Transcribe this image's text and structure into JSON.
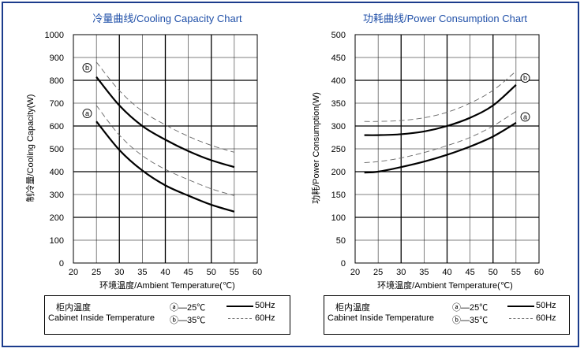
{
  "chart_data": [
    {
      "type": "line",
      "title": "冷量曲线/Cooling Capacity Chart",
      "xlabel": "环境温度/Ambient Temperature(℃)",
      "ylabel": "制冷量/Cooling Capacity(W)",
      "xlim": [
        20,
        60
      ],
      "ylim": [
        0,
        1000
      ],
      "x_ticks": [
        20,
        25,
        30,
        35,
        40,
        45,
        50,
        55,
        60
      ],
      "y_ticks": [
        0,
        100,
        200,
        300,
        400,
        500,
        600,
        700,
        800,
        900,
        1000
      ],
      "grid": true,
      "series": [
        {
          "marker": "b",
          "style": "solid",
          "x": [
            25,
            30,
            35,
            40,
            45,
            50,
            55
          ],
          "y": [
            815,
            690,
            600,
            540,
            490,
            450,
            420
          ]
        },
        {
          "marker": "b",
          "style": "dashed",
          "x": [
            25,
            30,
            35,
            40,
            45,
            50,
            55
          ],
          "y": [
            880,
            755,
            665,
            605,
            555,
            515,
            485
          ]
        },
        {
          "marker": "a",
          "style": "solid",
          "x": [
            25,
            30,
            35,
            40,
            45,
            50,
            55
          ],
          "y": [
            620,
            495,
            405,
            340,
            295,
            255,
            225
          ]
        },
        {
          "marker": "a",
          "style": "dashed",
          "x": [
            25,
            30,
            35,
            40,
            45,
            50,
            55
          ],
          "y": [
            690,
            560,
            470,
            410,
            365,
            325,
            295
          ]
        }
      ],
      "markers": [
        {
          "label": "b",
          "x": 23,
          "y": 855
        },
        {
          "label": "a",
          "x": 23,
          "y": 655
        }
      ]
    },
    {
      "type": "line",
      "title": "功耗曲线/Power Consumption Chart",
      "xlabel": "环境温度/Ambient Temperature(℃)",
      "ylabel": "功耗/Power Consumption(W)",
      "xlim": [
        20,
        60
      ],
      "ylim": [
        0,
        500
      ],
      "x_ticks": [
        20,
        25,
        30,
        35,
        40,
        45,
        50,
        55,
        60
      ],
      "y_ticks": [
        0,
        50,
        100,
        150,
        200,
        250,
        300,
        350,
        400,
        450,
        500
      ],
      "grid": true,
      "series": [
        {
          "marker": "b",
          "style": "solid",
          "x": [
            22,
            25,
            30,
            35,
            40,
            45,
            50,
            55
          ],
          "y": [
            280,
            280,
            282,
            288,
            300,
            318,
            345,
            390
          ]
        },
        {
          "marker": "b",
          "style": "dashed",
          "x": [
            22,
            25,
            30,
            35,
            40,
            45,
            50,
            55
          ],
          "y": [
            310,
            310,
            312,
            318,
            330,
            350,
            378,
            420
          ]
        },
        {
          "marker": "a",
          "style": "solid",
          "x": [
            22,
            25,
            30,
            35,
            40,
            45,
            50,
            55
          ],
          "y": [
            198,
            200,
            210,
            222,
            237,
            255,
            277,
            307
          ]
        },
        {
          "marker": "a",
          "style": "dashed",
          "x": [
            22,
            25,
            30,
            35,
            40,
            45,
            50,
            55
          ],
          "y": [
            220,
            222,
            230,
            242,
            257,
            275,
            300,
            332
          ]
        }
      ],
      "markers": [
        {
          "label": "b",
          "x": 57,
          "y": 405
        },
        {
          "label": "a",
          "x": 57,
          "y": 320
        }
      ]
    }
  ],
  "legend": {
    "title_cn": "柜内温度",
    "title_en": "Cabinet Inside Temperature",
    "item_a": "ⓐ—25℃",
    "item_b": "ⓑ—35℃",
    "solid_label": "50Hz",
    "dashed_label": "60Hz"
  }
}
